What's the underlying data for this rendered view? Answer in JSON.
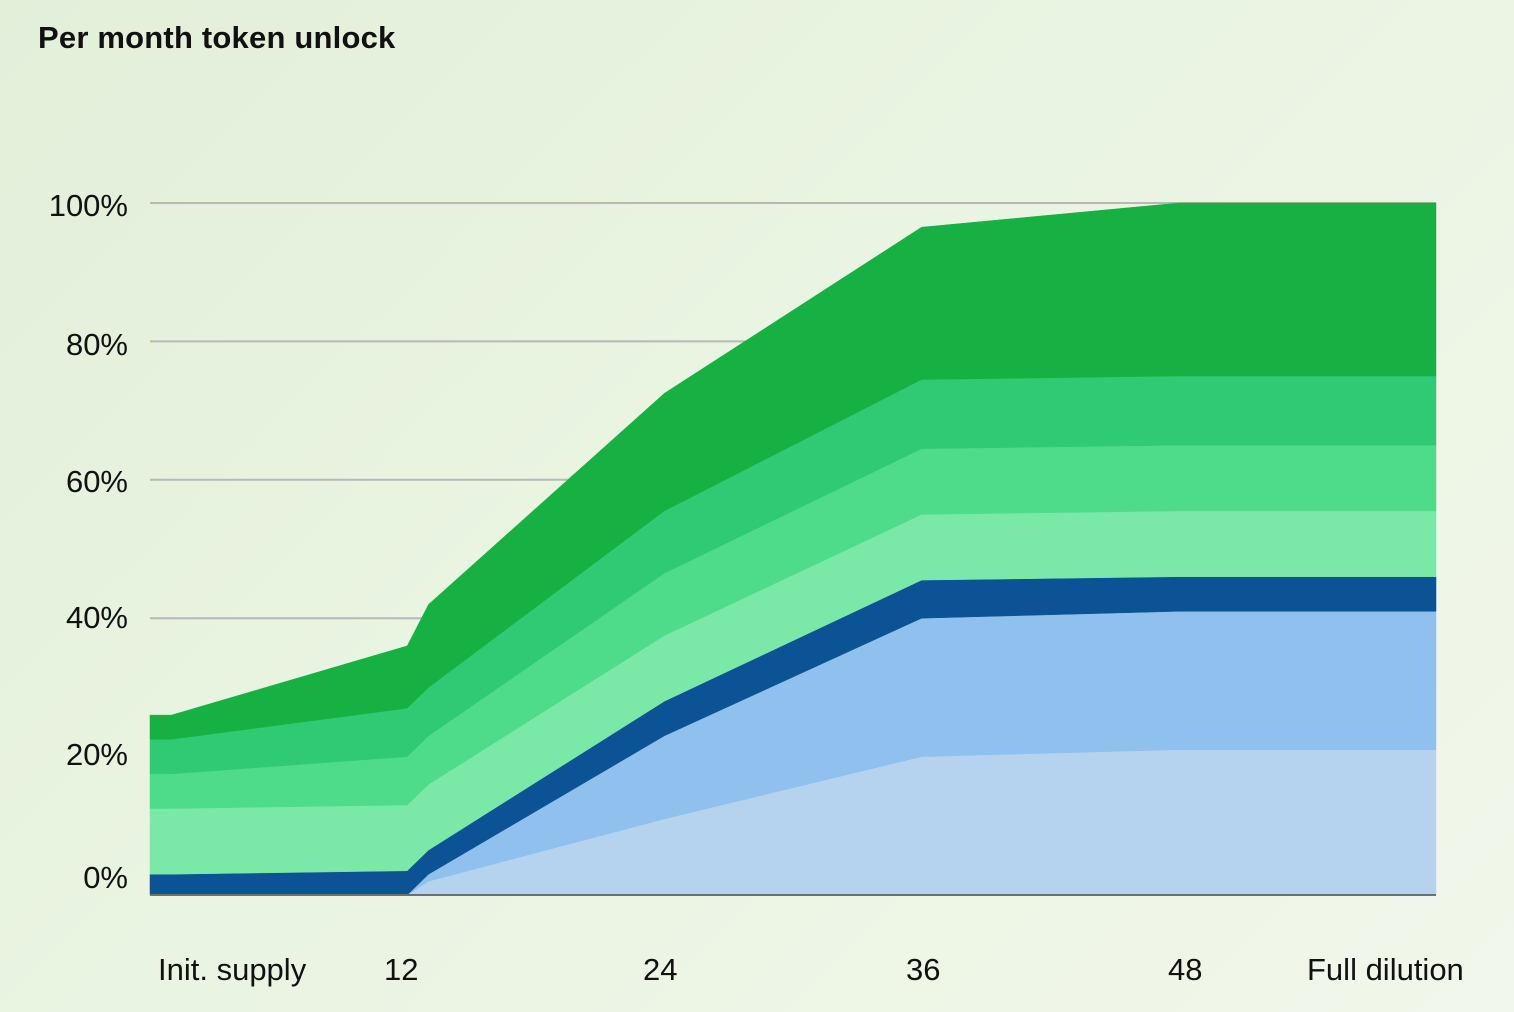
{
  "chart_data": {
    "type": "area",
    "stacked": true,
    "title": "Per month token unlock",
    "xlabel": "",
    "ylabel": "",
    "x": [
      "Init. supply",
      "1",
      "12",
      "13",
      "24",
      "36",
      "48",
      "Full dilution"
    ],
    "x_numeric": [
      0,
      1,
      12,
      13,
      24,
      36,
      48,
      60
    ],
    "x_tick_labels": [
      "Init. supply",
      "12",
      "24",
      "36",
      "48",
      "Full dilution"
    ],
    "y_tick_labels": [
      "0%",
      "20%",
      "40%",
      "60%",
      "80%",
      "100%"
    ],
    "ylim": [
      0,
      100
    ],
    "grid": true,
    "legend": "none",
    "series": [
      {
        "color": "#b5d3ef",
        "values": [
          0,
          0,
          0,
          2,
          11,
          20,
          21,
          21
        ]
      },
      {
        "color": "#8fc0ee",
        "values": [
          0,
          0,
          0,
          1,
          12,
          20,
          20,
          20
        ]
      },
      {
        "color": "#0b5394",
        "values": [
          3,
          3,
          3.5,
          3.5,
          5,
          5.5,
          5,
          5
        ]
      },
      {
        "color": "#7ae8a7",
        "values": [
          9.5,
          9.5,
          9.5,
          9.5,
          9.5,
          9.5,
          9.5,
          9.5
        ]
      },
      {
        "color": "#4fdc8a",
        "values": [
          5,
          5,
          7,
          7,
          9,
          9.5,
          9.5,
          9.5
        ]
      },
      {
        "color": "#31ca74",
        "values": [
          5,
          5,
          7,
          7,
          9,
          10,
          10,
          10
        ]
      },
      {
        "color": "#16b142",
        "values": [
          3.5,
          3.5,
          9,
          12,
          17,
          22,
          25,
          25
        ]
      }
    ]
  }
}
